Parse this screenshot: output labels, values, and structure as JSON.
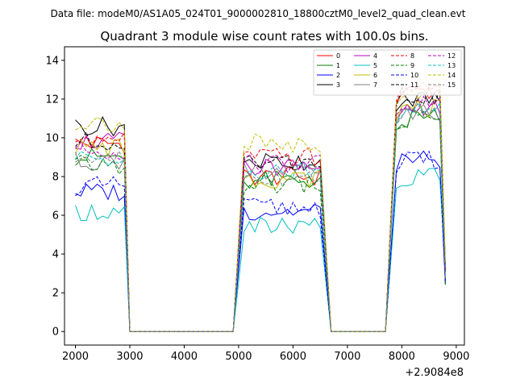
{
  "suptitle": "Data file: modeM0/AS1A05_024T01_9000002810_18800cztM0_level2_quad_clean.evt",
  "chart_data": {
    "type": "line",
    "title": "Quadrant 3 module wise count rates with 100.0s bins.",
    "xlabel": "",
    "ylabel": "",
    "x_offset_label": "+2.9084e8",
    "xlim": [
      1800,
      9150
    ],
    "ylim": [
      -0.7,
      14.7
    ],
    "x_ticks": [
      2000,
      3000,
      4000,
      5000,
      6000,
      7000,
      8000,
      9000
    ],
    "y_ticks": [
      0,
      2,
      4,
      6,
      8,
      10,
      12,
      14
    ],
    "legend_position": "top-right",
    "segments": [
      {
        "x_start": 2000,
        "x_end": 2900,
        "drop_to": 3000
      },
      {
        "x_start": 5100,
        "x_end": 6500,
        "rise_from": 4900,
        "drop_to": 6700
      },
      {
        "x_start": 7900,
        "x_end": 8700,
        "rise_from": 7700,
        "drop_to": 8800
      }
    ],
    "series": [
      {
        "name": "0",
        "color": "#ff0000",
        "dashed": false,
        "seg_means": [
          9.7,
          8.0,
          12.4
        ]
      },
      {
        "name": "1",
        "color": "#008000",
        "dashed": false,
        "seg_means": [
          9.0,
          7.8,
          11.0
        ]
      },
      {
        "name": "2",
        "color": "#0000ff",
        "dashed": false,
        "seg_means": [
          7.2,
          6.2,
          8.9
        ]
      },
      {
        "name": "3",
        "color": "#000000",
        "dashed": false,
        "seg_means": [
          10.6,
          8.8,
          12.0
        ]
      },
      {
        "name": "4",
        "color": "#bf00bf",
        "dashed": false,
        "seg_means": [
          9.8,
          8.5,
          11.6
        ]
      },
      {
        "name": "5",
        "color": "#00bfbf",
        "dashed": false,
        "seg_means": [
          6.2,
          5.4,
          8.0
        ]
      },
      {
        "name": "6",
        "color": "#bfbf00",
        "dashed": false,
        "seg_means": [
          9.5,
          7.9,
          11.5
        ]
      },
      {
        "name": "7",
        "color": "#808080",
        "dashed": false,
        "seg_means": [
          8.8,
          8.2,
          11.3
        ]
      },
      {
        "name": "8",
        "color": "#ff0000",
        "dashed": true,
        "seg_means": [
          10.0,
          9.0,
          12.5
        ]
      },
      {
        "name": "9",
        "color": "#008000",
        "dashed": true,
        "seg_means": [
          8.6,
          7.6,
          11.0
        ]
      },
      {
        "name": "10",
        "color": "#0000ff",
        "dashed": true,
        "seg_means": [
          7.5,
          6.4,
          8.8
        ]
      },
      {
        "name": "11",
        "color": "#000000",
        "dashed": true,
        "seg_means": [
          9.8,
          8.7,
          12.2
        ]
      },
      {
        "name": "12",
        "color": "#bf00bf",
        "dashed": true,
        "seg_means": [
          9.3,
          8.7,
          11.8
        ]
      },
      {
        "name": "13",
        "color": "#00bfbf",
        "dashed": true,
        "seg_means": [
          8.9,
          8.3,
          11.4
        ]
      },
      {
        "name": "14",
        "color": "#bfbf00",
        "dashed": true,
        "seg_means": [
          10.8,
          9.7,
          12.4
        ]
      },
      {
        "name": "15",
        "color": "#808080",
        "dashed": true,
        "seg_means": [
          8.9,
          8.0,
          11.3
        ]
      }
    ]
  }
}
